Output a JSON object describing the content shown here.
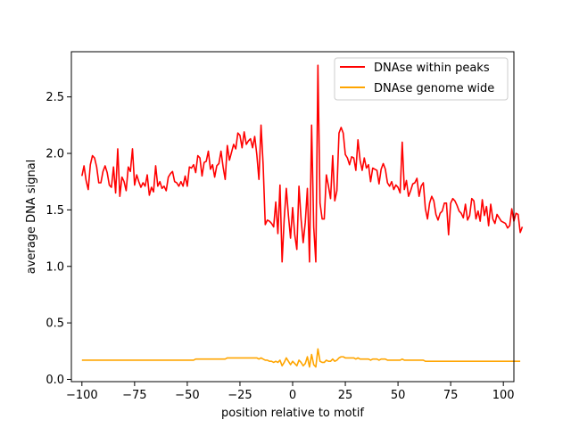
{
  "chart_data": {
    "type": "line",
    "title": "",
    "xlabel": "position relative to motif",
    "ylabel": "average DNA signal",
    "xlim": [
      -105,
      105
    ],
    "ylim": [
      -0.02,
      2.9
    ],
    "xticks": [
      -100,
      -75,
      -50,
      -25,
      0,
      25,
      50,
      75,
      100
    ],
    "yticks": [
      0.0,
      0.5,
      1.0,
      1.5,
      2.0,
      2.5
    ],
    "ytick_labels": [
      "0.0",
      "0.5",
      "1.0",
      "1.5",
      "2.0",
      "2.5"
    ],
    "grid": false,
    "legend": "top-right",
    "x_start": -100,
    "x_step": 1,
    "series": [
      {
        "name": "DNAse within peaks",
        "color": "#ff0000",
        "values": [
          1.8,
          1.89,
          1.76,
          1.68,
          1.9,
          1.98,
          1.96,
          1.88,
          1.74,
          1.74,
          1.84,
          1.89,
          1.83,
          1.72,
          1.7,
          1.88,
          1.65,
          2.04,
          1.62,
          1.79,
          1.75,
          1.67,
          1.88,
          1.84,
          2.04,
          1.72,
          1.81,
          1.75,
          1.7,
          1.74,
          1.71,
          1.81,
          1.63,
          1.7,
          1.66,
          1.89,
          1.71,
          1.75,
          1.69,
          1.71,
          1.67,
          1.79,
          1.82,
          1.84,
          1.75,
          1.74,
          1.71,
          1.75,
          1.71,
          1.8,
          1.71,
          1.88,
          1.87,
          1.9,
          1.83,
          1.98,
          1.96,
          1.8,
          1.92,
          1.93,
          2.02,
          1.86,
          1.9,
          1.79,
          1.89,
          1.91,
          2.02,
          1.88,
          1.77,
          2.07,
          1.94,
          2.01,
          2.08,
          2.04,
          2.18,
          2.16,
          2.05,
          2.19,
          2.08,
          2.11,
          2.13,
          2.05,
          2.15,
          1.99,
          1.77,
          2.25,
          1.9,
          1.37,
          1.41,
          1.4,
          1.38,
          1.35,
          1.57,
          1.29,
          1.72,
          1.04,
          1.42,
          1.69,
          1.45,
          1.25,
          1.52,
          1.28,
          1.15,
          1.71,
          1.42,
          1.21,
          1.39,
          1.69,
          1.04,
          2.25,
          1.35,
          1.04,
          2.78,
          1.56,
          1.42,
          1.42,
          1.81,
          1.71,
          1.6,
          1.98,
          1.58,
          1.67,
          2.18,
          2.23,
          2.18,
          1.99,
          1.96,
          1.9,
          1.97,
          1.96,
          1.85,
          2.12,
          1.94,
          1.85,
          1.96,
          1.87,
          1.9,
          1.75,
          1.87,
          1.86,
          1.85,
          1.73,
          1.86,
          1.91,
          1.86,
          1.74,
          1.71,
          1.75,
          1.68,
          1.72,
          1.7,
          1.65,
          2.1,
          1.68,
          1.76,
          1.62,
          1.67,
          1.73,
          1.74,
          1.78,
          1.62,
          1.71,
          1.74,
          1.51,
          1.42,
          1.56,
          1.62,
          1.58,
          1.46,
          1.41,
          1.47,
          1.49,
          1.56,
          1.56,
          1.28,
          1.56,
          1.6,
          1.58,
          1.54,
          1.49,
          1.47,
          1.43,
          1.55,
          1.41,
          1.45,
          1.6,
          1.58,
          1.42,
          1.49,
          1.4,
          1.59,
          1.45,
          1.53,
          1.36,
          1.55,
          1.42,
          1.38,
          1.46,
          1.43,
          1.4,
          1.39,
          1.38,
          1.34,
          1.36,
          1.51,
          1.4,
          1.47,
          1.46,
          1.3,
          1.35
        ]
      },
      {
        "name": "DNAse genome wide",
        "color": "#ffa500",
        "values": [
          0.17,
          0.17,
          0.17,
          0.17,
          0.17,
          0.17,
          0.17,
          0.17,
          0.17,
          0.17,
          0.17,
          0.17,
          0.17,
          0.17,
          0.17,
          0.17,
          0.17,
          0.17,
          0.17,
          0.17,
          0.17,
          0.17,
          0.17,
          0.17,
          0.17,
          0.17,
          0.17,
          0.17,
          0.17,
          0.17,
          0.17,
          0.17,
          0.17,
          0.17,
          0.17,
          0.17,
          0.17,
          0.17,
          0.17,
          0.17,
          0.17,
          0.17,
          0.17,
          0.17,
          0.17,
          0.17,
          0.17,
          0.17,
          0.17,
          0.17,
          0.17,
          0.17,
          0.17,
          0.17,
          0.18,
          0.18,
          0.18,
          0.18,
          0.18,
          0.18,
          0.18,
          0.18,
          0.18,
          0.18,
          0.18,
          0.18,
          0.18,
          0.18,
          0.18,
          0.19,
          0.19,
          0.19,
          0.19,
          0.19,
          0.19,
          0.19,
          0.19,
          0.19,
          0.19,
          0.19,
          0.19,
          0.19,
          0.19,
          0.19,
          0.18,
          0.19,
          0.18,
          0.17,
          0.17,
          0.16,
          0.16,
          0.15,
          0.16,
          0.15,
          0.17,
          0.12,
          0.15,
          0.19,
          0.16,
          0.13,
          0.16,
          0.14,
          0.12,
          0.17,
          0.15,
          0.12,
          0.14,
          0.2,
          0.11,
          0.22,
          0.13,
          0.11,
          0.27,
          0.16,
          0.15,
          0.15,
          0.17,
          0.16,
          0.16,
          0.18,
          0.16,
          0.17,
          0.19,
          0.2,
          0.2,
          0.19,
          0.19,
          0.19,
          0.19,
          0.19,
          0.18,
          0.19,
          0.18,
          0.18,
          0.18,
          0.18,
          0.18,
          0.17,
          0.18,
          0.18,
          0.18,
          0.17,
          0.18,
          0.18,
          0.18,
          0.17,
          0.17,
          0.17,
          0.17,
          0.17,
          0.17,
          0.17,
          0.18,
          0.17,
          0.17,
          0.17,
          0.17,
          0.17,
          0.17,
          0.17,
          0.17,
          0.17,
          0.17,
          0.16,
          0.16,
          0.16,
          0.16,
          0.16,
          0.16,
          0.16,
          0.16,
          0.16,
          0.16,
          0.16,
          0.16,
          0.16,
          0.16,
          0.16,
          0.16,
          0.16,
          0.16,
          0.16,
          0.16,
          0.16,
          0.16,
          0.16,
          0.16,
          0.16,
          0.16,
          0.16,
          0.16,
          0.16,
          0.16,
          0.16,
          0.16,
          0.16,
          0.16,
          0.16,
          0.16,
          0.16,
          0.16,
          0.16,
          0.16,
          0.16,
          0.16,
          0.16,
          0.16,
          0.16,
          0.16
        ]
      }
    ]
  }
}
